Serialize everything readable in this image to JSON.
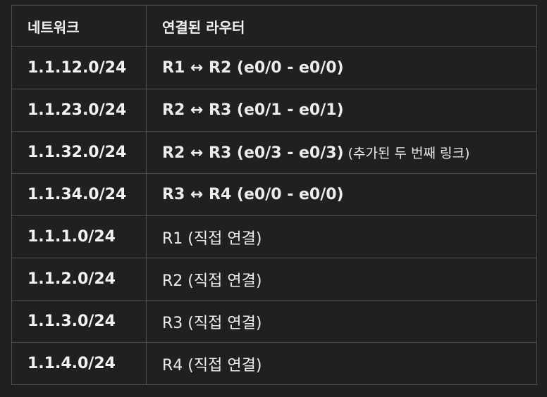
{
  "table": {
    "headers": {
      "network": "네트워크",
      "routers": "연결된 라우터"
    },
    "rows": [
      {
        "network": "1.1.12.0/24",
        "routers": "R1 ↔ R2 (e0/0 - e0/0)",
        "note": "",
        "bold": true
      },
      {
        "network": "1.1.23.0/24",
        "routers": "R2 ↔ R3 (e0/1 - e0/1)",
        "note": "",
        "bold": true
      },
      {
        "network": "1.1.32.0/24",
        "routers": "R2 ↔ R3 (e0/3 - e0/3)",
        "note": " (추가된 두 번째 링크)",
        "bold": true
      },
      {
        "network": "1.1.34.0/24",
        "routers": "R3 ↔ R4 (e0/0 - e0/0)",
        "note": "",
        "bold": true
      },
      {
        "network": "1.1.1.0/24",
        "routers": "R1 (직접 연결)",
        "note": "",
        "bold": false
      },
      {
        "network": "1.1.2.0/24",
        "routers": "R2 (직접 연결)",
        "note": "",
        "bold": false
      },
      {
        "network": "1.1.3.0/24",
        "routers": "R3 (직접 연결)",
        "note": "",
        "bold": false
      },
      {
        "network": "1.1.4.0/24",
        "routers": "R4 (직접 연결)",
        "note": "",
        "bold": false
      }
    ]
  }
}
